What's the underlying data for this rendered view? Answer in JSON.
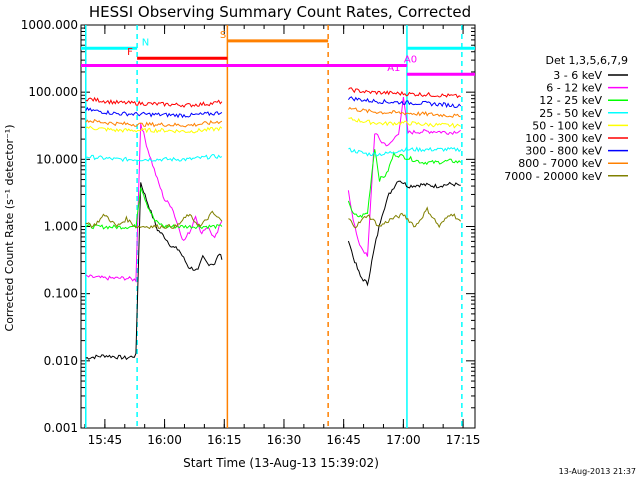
{
  "chart_data": {
    "type": "line",
    "title": "HESSI Observing Summary Count Rates, Corrected",
    "xlabel": "Start Time (13-Aug-13 15:39:02)",
    "ylabel": "Corrected Count Rate (s⁻¹ detector⁻¹)",
    "yscale": "log",
    "xlim": [
      15.65,
      17.3
    ],
    "ylim": [
      0.001,
      1000
    ],
    "x_unit": "hours UT",
    "x_ticks": [
      {
        "value": 15.75,
        "label": "15:45"
      },
      {
        "value": 16.0,
        "label": "16:00"
      },
      {
        "value": 16.25,
        "label": "16:15"
      },
      {
        "value": 16.5,
        "label": "16:30"
      },
      {
        "value": 16.75,
        "label": "16:45"
      },
      {
        "value": 17.0,
        "label": "17:00"
      },
      {
        "value": 17.25,
        "label": "17:15"
      }
    ],
    "y_ticks": [
      {
        "value": 0.001,
        "label": "0.001"
      },
      {
        "value": 0.01,
        "label": "0.010"
      },
      {
        "value": 0.1,
        "label": "0.100"
      },
      {
        "value": 1,
        "label": "1.000"
      },
      {
        "value": 10,
        "label": "10.000"
      },
      {
        "value": 100,
        "label": "100.000"
      },
      {
        "value": 1000,
        "label": "1000.000"
      }
    ],
    "legend_title": "Det 1,3,5,6,7,9",
    "legend_position": "right",
    "series": [
      {
        "name": "3 - 6 keV",
        "color": "#000000",
        "segments": [
          [
            [
              15.67,
              0.011
            ],
            [
              15.75,
              0.012
            ],
            [
              15.84,
              0.011
            ],
            [
              15.88,
              0.012
            ],
            [
              15.9,
              4.5
            ],
            [
              15.93,
              2.2
            ],
            [
              15.97,
              0.9
            ],
            [
              16.0,
              0.7
            ],
            [
              16.03,
              0.5
            ],
            [
              16.06,
              0.45
            ],
            [
              16.1,
              0.25
            ],
            [
              16.14,
              0.22
            ],
            [
              16.16,
              0.35
            ],
            [
              16.18,
              0.28
            ],
            [
              16.21,
              0.28
            ],
            [
              16.23,
              0.4
            ],
            [
              16.24,
              0.32
            ]
          ],
          [
            [
              16.77,
              0.65
            ],
            [
              16.79,
              0.35
            ],
            [
              16.82,
              0.18
            ],
            [
              16.85,
              0.14
            ],
            [
              16.88,
              0.5
            ],
            [
              16.91,
              1.5
            ],
            [
              16.94,
              3.0
            ],
            [
              16.98,
              5.0
            ],
            [
              17.02,
              4.0
            ],
            [
              17.08,
              4.2
            ],
            [
              17.14,
              4.0
            ],
            [
              17.2,
              4.3
            ],
            [
              17.24,
              4.1
            ]
          ]
        ]
      },
      {
        "name": "6 - 12 keV",
        "color": "#ff00ff",
        "segments": [
          [
            [
              15.67,
              0.18
            ],
            [
              15.75,
              0.17
            ],
            [
              15.84,
              0.17
            ],
            [
              15.88,
              0.16
            ],
            [
              15.9,
              35
            ],
            [
              15.93,
              14
            ],
            [
              15.97,
              5.0
            ],
            [
              16.0,
              2.5
            ],
            [
              16.03,
              2.0
            ],
            [
              16.05,
              1.2
            ],
            [
              16.08,
              0.6
            ],
            [
              16.11,
              0.9
            ],
            [
              16.13,
              1.5
            ],
            [
              16.15,
              0.8
            ],
            [
              16.18,
              1.0
            ],
            [
              16.21,
              0.65
            ],
            [
              16.24,
              1.2
            ]
          ],
          [
            [
              16.77,
              3.5
            ],
            [
              16.79,
              1.3
            ],
            [
              16.81,
              0.6
            ],
            [
              16.85,
              0.35
            ],
            [
              16.88,
              25
            ],
            [
              16.91,
              18
            ],
            [
              16.94,
              16
            ],
            [
              16.98,
              25
            ],
            [
              17.0,
              80
            ],
            [
              17.02,
              25
            ],
            [
              17.08,
              26
            ],
            [
              17.14,
              26
            ],
            [
              17.2,
              25
            ],
            [
              17.24,
              27
            ]
          ]
        ]
      },
      {
        "name": "12 - 25 keV",
        "color": "#00ff00",
        "segments": [
          [
            [
              15.67,
              1.0
            ],
            [
              15.8,
              0.98
            ],
            [
              15.88,
              1.0
            ],
            [
              15.9,
              4.0
            ],
            [
              15.93,
              2.0
            ],
            [
              15.96,
              1.2
            ],
            [
              16.0,
              1.0
            ],
            [
              16.1,
              1.0
            ],
            [
              16.2,
              1.0
            ],
            [
              16.24,
              1.0
            ]
          ],
          [
            [
              16.77,
              2.5
            ],
            [
              16.79,
              1.5
            ],
            [
              16.82,
              1.4
            ],
            [
              16.85,
              1.6
            ],
            [
              16.88,
              15
            ],
            [
              16.9,
              5
            ],
            [
              16.93,
              6
            ],
            [
              16.96,
              12
            ],
            [
              17.0,
              11
            ],
            [
              17.08,
              9
            ],
            [
              17.14,
              9
            ],
            [
              17.2,
              9.5
            ],
            [
              17.24,
              9
            ]
          ]
        ]
      },
      {
        "name": "25 - 50 keV",
        "color": "#00ffff",
        "segments": [
          [
            [
              15.67,
              11
            ],
            [
              15.8,
              10
            ],
            [
              15.9,
              10
            ],
            [
              16.0,
              10
            ],
            [
              16.1,
              10
            ],
            [
              16.2,
              11
            ],
            [
              16.24,
              11
            ]
          ],
          [
            [
              16.77,
              14
            ],
            [
              16.85,
              12
            ],
            [
              16.92,
              12
            ],
            [
              17.0,
              14
            ],
            [
              17.1,
              14
            ],
            [
              17.2,
              14
            ],
            [
              17.24,
              14
            ]
          ]
        ]
      },
      {
        "name": "50 - 100 keV",
        "color": "#ffff00",
        "segments": [
          [
            [
              15.67,
              30
            ],
            [
              15.8,
              27
            ],
            [
              15.9,
              27
            ],
            [
              16.0,
              27
            ],
            [
              16.1,
              26
            ],
            [
              16.2,
              28
            ],
            [
              16.24,
              29
            ]
          ],
          [
            [
              16.77,
              40
            ],
            [
              16.85,
              36
            ],
            [
              16.92,
              34
            ],
            [
              17.0,
              35
            ],
            [
              17.1,
              33
            ],
            [
              17.2,
              32
            ],
            [
              17.24,
              31
            ]
          ]
        ]
      },
      {
        "name": "100 - 300 keV",
        "color": "#ff0000",
        "segments": [
          [
            [
              15.67,
              80
            ],
            [
              15.8,
              70
            ],
            [
              15.9,
              68
            ],
            [
              16.0,
              66
            ],
            [
              16.1,
              64
            ],
            [
              16.2,
              68
            ],
            [
              16.24,
              72
            ]
          ],
          [
            [
              16.77,
              110
            ],
            [
              16.85,
              100
            ],
            [
              16.92,
              98
            ],
            [
              17.0,
              95
            ],
            [
              17.1,
              92
            ],
            [
              17.2,
              88
            ],
            [
              17.24,
              86
            ]
          ]
        ]
      },
      {
        "name": "300 - 800 keV",
        "color": "#0000ff",
        "segments": [
          [
            [
              15.67,
              55
            ],
            [
              15.8,
              48
            ],
            [
              15.9,
              47
            ],
            [
              16.0,
              46
            ],
            [
              16.1,
              45
            ],
            [
              16.2,
              48
            ],
            [
              16.24,
              50
            ]
          ],
          [
            [
              16.77,
              82
            ],
            [
              16.85,
              75
            ],
            [
              16.92,
              72
            ],
            [
              17.0,
              70
            ],
            [
              17.1,
              68
            ],
            [
              17.2,
              64
            ],
            [
              17.24,
              62
            ]
          ]
        ]
      },
      {
        "name": "800 - 7000 keV",
        "color": "#ff8000",
        "segments": [
          [
            [
              15.67,
              38
            ],
            [
              15.8,
              34
            ],
            [
              15.9,
              33
            ],
            [
              16.0,
              33
            ],
            [
              16.1,
              32
            ],
            [
              16.2,
              35
            ],
            [
              16.24,
              37
            ]
          ],
          [
            [
              16.77,
              58
            ],
            [
              16.85,
              52
            ],
            [
              16.92,
              50
            ],
            [
              17.0,
              49
            ],
            [
              17.1,
              47
            ],
            [
              17.2,
              45
            ],
            [
              17.24,
              43
            ]
          ]
        ]
      },
      {
        "name": "7000 - 20000 keV",
        "color": "#808000",
        "segments": [
          [
            [
              15.67,
              1.2
            ],
            [
              15.7,
              1.0
            ],
            [
              15.75,
              1.5
            ],
            [
              15.8,
              1.0
            ],
            [
              15.84,
              1.3
            ],
            [
              15.88,
              1.0
            ],
            [
              15.95,
              1.0
            ],
            [
              16.05,
              1.0
            ],
            [
              16.1,
              1.5
            ],
            [
              16.15,
              1.0
            ],
            [
              16.2,
              1.6
            ],
            [
              16.24,
              1.2
            ]
          ],
          [
            [
              16.77,
              1.3
            ],
            [
              16.8,
              1.0
            ],
            [
              16.85,
              1.5
            ],
            [
              16.9,
              1.0
            ],
            [
              16.95,
              1.3
            ],
            [
              17.0,
              1.5
            ],
            [
              17.05,
              1.0
            ],
            [
              17.1,
              1.8
            ],
            [
              17.15,
              1.0
            ],
            [
              17.2,
              1.6
            ],
            [
              17.24,
              1.2
            ]
          ]
        ]
      }
    ],
    "annotations": {
      "vlines": [
        {
          "x": 15.67,
          "color": "#00ffff",
          "style": "solid"
        },
        {
          "x": 15.885,
          "color": "#00ffff",
          "style": "dashed"
        },
        {
          "x": 16.263,
          "color": "#ff8000",
          "style": "solid"
        },
        {
          "x": 16.685,
          "color": "#ff8000",
          "style": "dashed"
        },
        {
          "x": 17.015,
          "color": "#00ffff",
          "style": "solid"
        },
        {
          "x": 17.245,
          "color": "#00ffff",
          "style": "dashed"
        }
      ],
      "flag_bars": [
        {
          "label": "N",
          "color": "#00ffff",
          "x0": 15.65,
          "x1": 15.885,
          "y": 450,
          "label_x": 15.92
        },
        {
          "label": "F",
          "color": "#ff0000",
          "x0": 15.885,
          "x1": 16.263,
          "y": 320,
          "label_x": 15.855
        },
        {
          "label": "S",
          "color": "#ff8000",
          "x0": 16.263,
          "x1": 16.685,
          "y": 580,
          "label_x": 16.245
        },
        {
          "label": "A0",
          "color": "#ff00ff",
          "x0": 15.65,
          "x1": 17.015,
          "y": 250,
          "label_x": 17.03
        },
        {
          "label": "A1",
          "color": "#ff00ff",
          "x0": 17.015,
          "x1": 17.3,
          "y": 185,
          "label_x": 16.96
        },
        {
          "label": "",
          "color": "#00ffff",
          "x0": 17.015,
          "x1": 17.3,
          "y": 450,
          "label_x": 0
        }
      ]
    }
  },
  "footer": {
    "timestamp": "13-Aug-2013 21:37"
  }
}
